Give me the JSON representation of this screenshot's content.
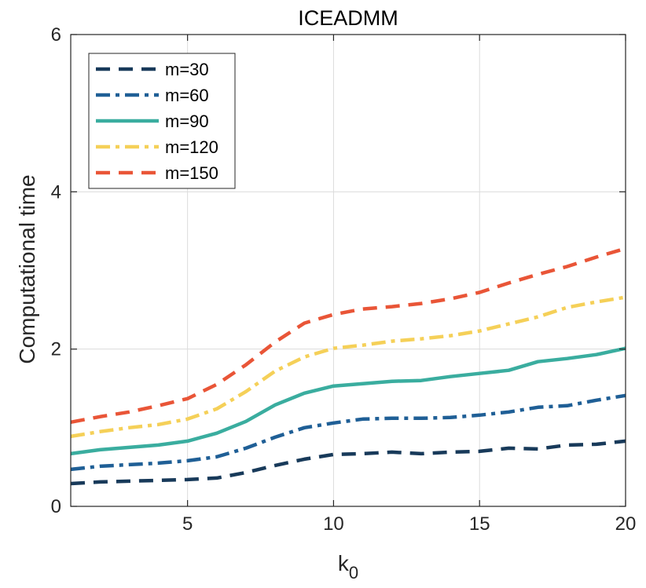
{
  "chart_data": {
    "type": "line",
    "title": "ICEADMM",
    "xlabel": "k",
    "xlabel_subscript": "0",
    "ylabel": "Computational time",
    "xlim": [
      1,
      20
    ],
    "ylim": [
      0,
      6
    ],
    "xticks": [
      5,
      10,
      15,
      20
    ],
    "yticks": [
      0,
      2,
      4,
      6
    ],
    "xtick_labels": [
      "5",
      "10",
      "15",
      "20"
    ],
    "ytick_labels": [
      "0",
      "2",
      "4",
      "6"
    ],
    "grid": true,
    "legend_position": "top-left",
    "x": [
      1,
      2,
      3,
      4,
      5,
      6,
      7,
      8,
      9,
      10,
      11,
      12,
      13,
      14,
      15,
      16,
      17,
      18,
      19,
      20
    ],
    "series": [
      {
        "name": "m=30",
        "color": "#183a5a",
        "dash": "dashed",
        "values": [
          0.29,
          0.31,
          0.32,
          0.33,
          0.34,
          0.36,
          0.43,
          0.52,
          0.6,
          0.66,
          0.67,
          0.69,
          0.67,
          0.69,
          0.7,
          0.74,
          0.73,
          0.78,
          0.79,
          0.83
        ]
      },
      {
        "name": "m=60",
        "color": "#1f5f96",
        "dash": "dashdot",
        "values": [
          0.47,
          0.51,
          0.53,
          0.55,
          0.58,
          0.63,
          0.74,
          0.88,
          1.0,
          1.06,
          1.11,
          1.12,
          1.12,
          1.13,
          1.16,
          1.2,
          1.26,
          1.28,
          1.35,
          1.41
        ]
      },
      {
        "name": "m=90",
        "color": "#3aad9f",
        "dash": "solid",
        "values": [
          0.67,
          0.72,
          0.75,
          0.78,
          0.83,
          0.93,
          1.08,
          1.29,
          1.44,
          1.53,
          1.56,
          1.59,
          1.6,
          1.65,
          1.69,
          1.73,
          1.84,
          1.88,
          1.93,
          2.01
        ]
      },
      {
        "name": "m=120",
        "color": "#f5d058",
        "dash": "dashdot",
        "values": [
          0.89,
          0.95,
          1.0,
          1.04,
          1.11,
          1.24,
          1.46,
          1.72,
          1.9,
          2.01,
          2.05,
          2.1,
          2.13,
          2.17,
          2.23,
          2.32,
          2.41,
          2.53,
          2.6,
          2.66
        ]
      },
      {
        "name": "m=150",
        "color": "#e95537",
        "dash": "dashed",
        "values": [
          1.07,
          1.14,
          1.2,
          1.28,
          1.37,
          1.55,
          1.8,
          2.09,
          2.33,
          2.44,
          2.51,
          2.54,
          2.58,
          2.64,
          2.72,
          2.84,
          2.95,
          3.05,
          3.17,
          3.28
        ]
      }
    ]
  }
}
